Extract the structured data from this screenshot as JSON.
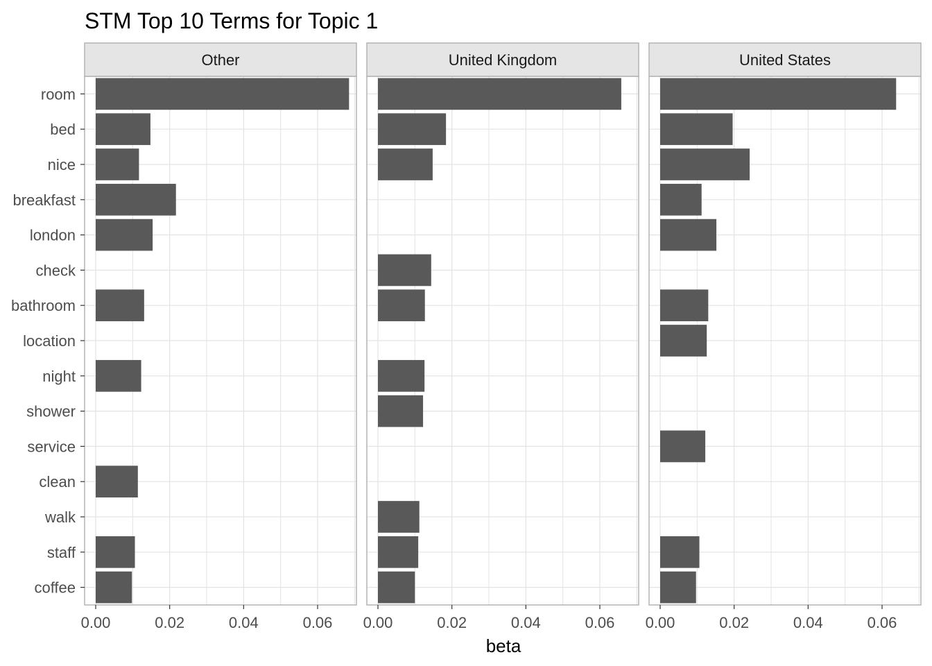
{
  "chart_data": {
    "type": "bar",
    "orientation": "horizontal",
    "title": "STM Top 10 Terms for Topic 1",
    "xlabel": "beta",
    "ylabel": "",
    "xlim": [
      -0.003,
      0.0705
    ],
    "x_ticks": [
      "0.00",
      "0.02",
      "0.04",
      "0.06"
    ],
    "x_tick_values": [
      0,
      0.02,
      0.04,
      0.06
    ],
    "grid": true,
    "categories": [
      "room",
      "bed",
      "nice",
      "breakfast",
      "london",
      "check",
      "bathroom",
      "location",
      "night",
      "shower",
      "service",
      "clean",
      "walk",
      "staff",
      "coffee"
    ],
    "series": [
      {
        "name": "Other",
        "values": [
          0.0685,
          0.0148,
          0.0117,
          0.0217,
          0.0154,
          null,
          0.0131,
          null,
          0.0123,
          null,
          null,
          0.0114,
          null,
          0.0106,
          0.0098
        ]
      },
      {
        "name": "United Kingdom",
        "values": [
          0.0658,
          0.0184,
          0.0148,
          null,
          null,
          0.0144,
          0.0127,
          null,
          0.0126,
          0.0122,
          null,
          null,
          0.0112,
          0.0109,
          0.01
        ]
      },
      {
        "name": "United States",
        "values": [
          0.0638,
          0.0196,
          0.0242,
          0.0112,
          0.0152,
          null,
          0.013,
          0.0126,
          null,
          null,
          0.0122,
          null,
          null,
          0.0106,
          0.0097
        ]
      }
    ],
    "colors": {
      "bar": "#595959",
      "strip_bg": "#e5e5e5",
      "panel_border": "#b3b3b3",
      "grid": "#e3e3e3"
    }
  }
}
